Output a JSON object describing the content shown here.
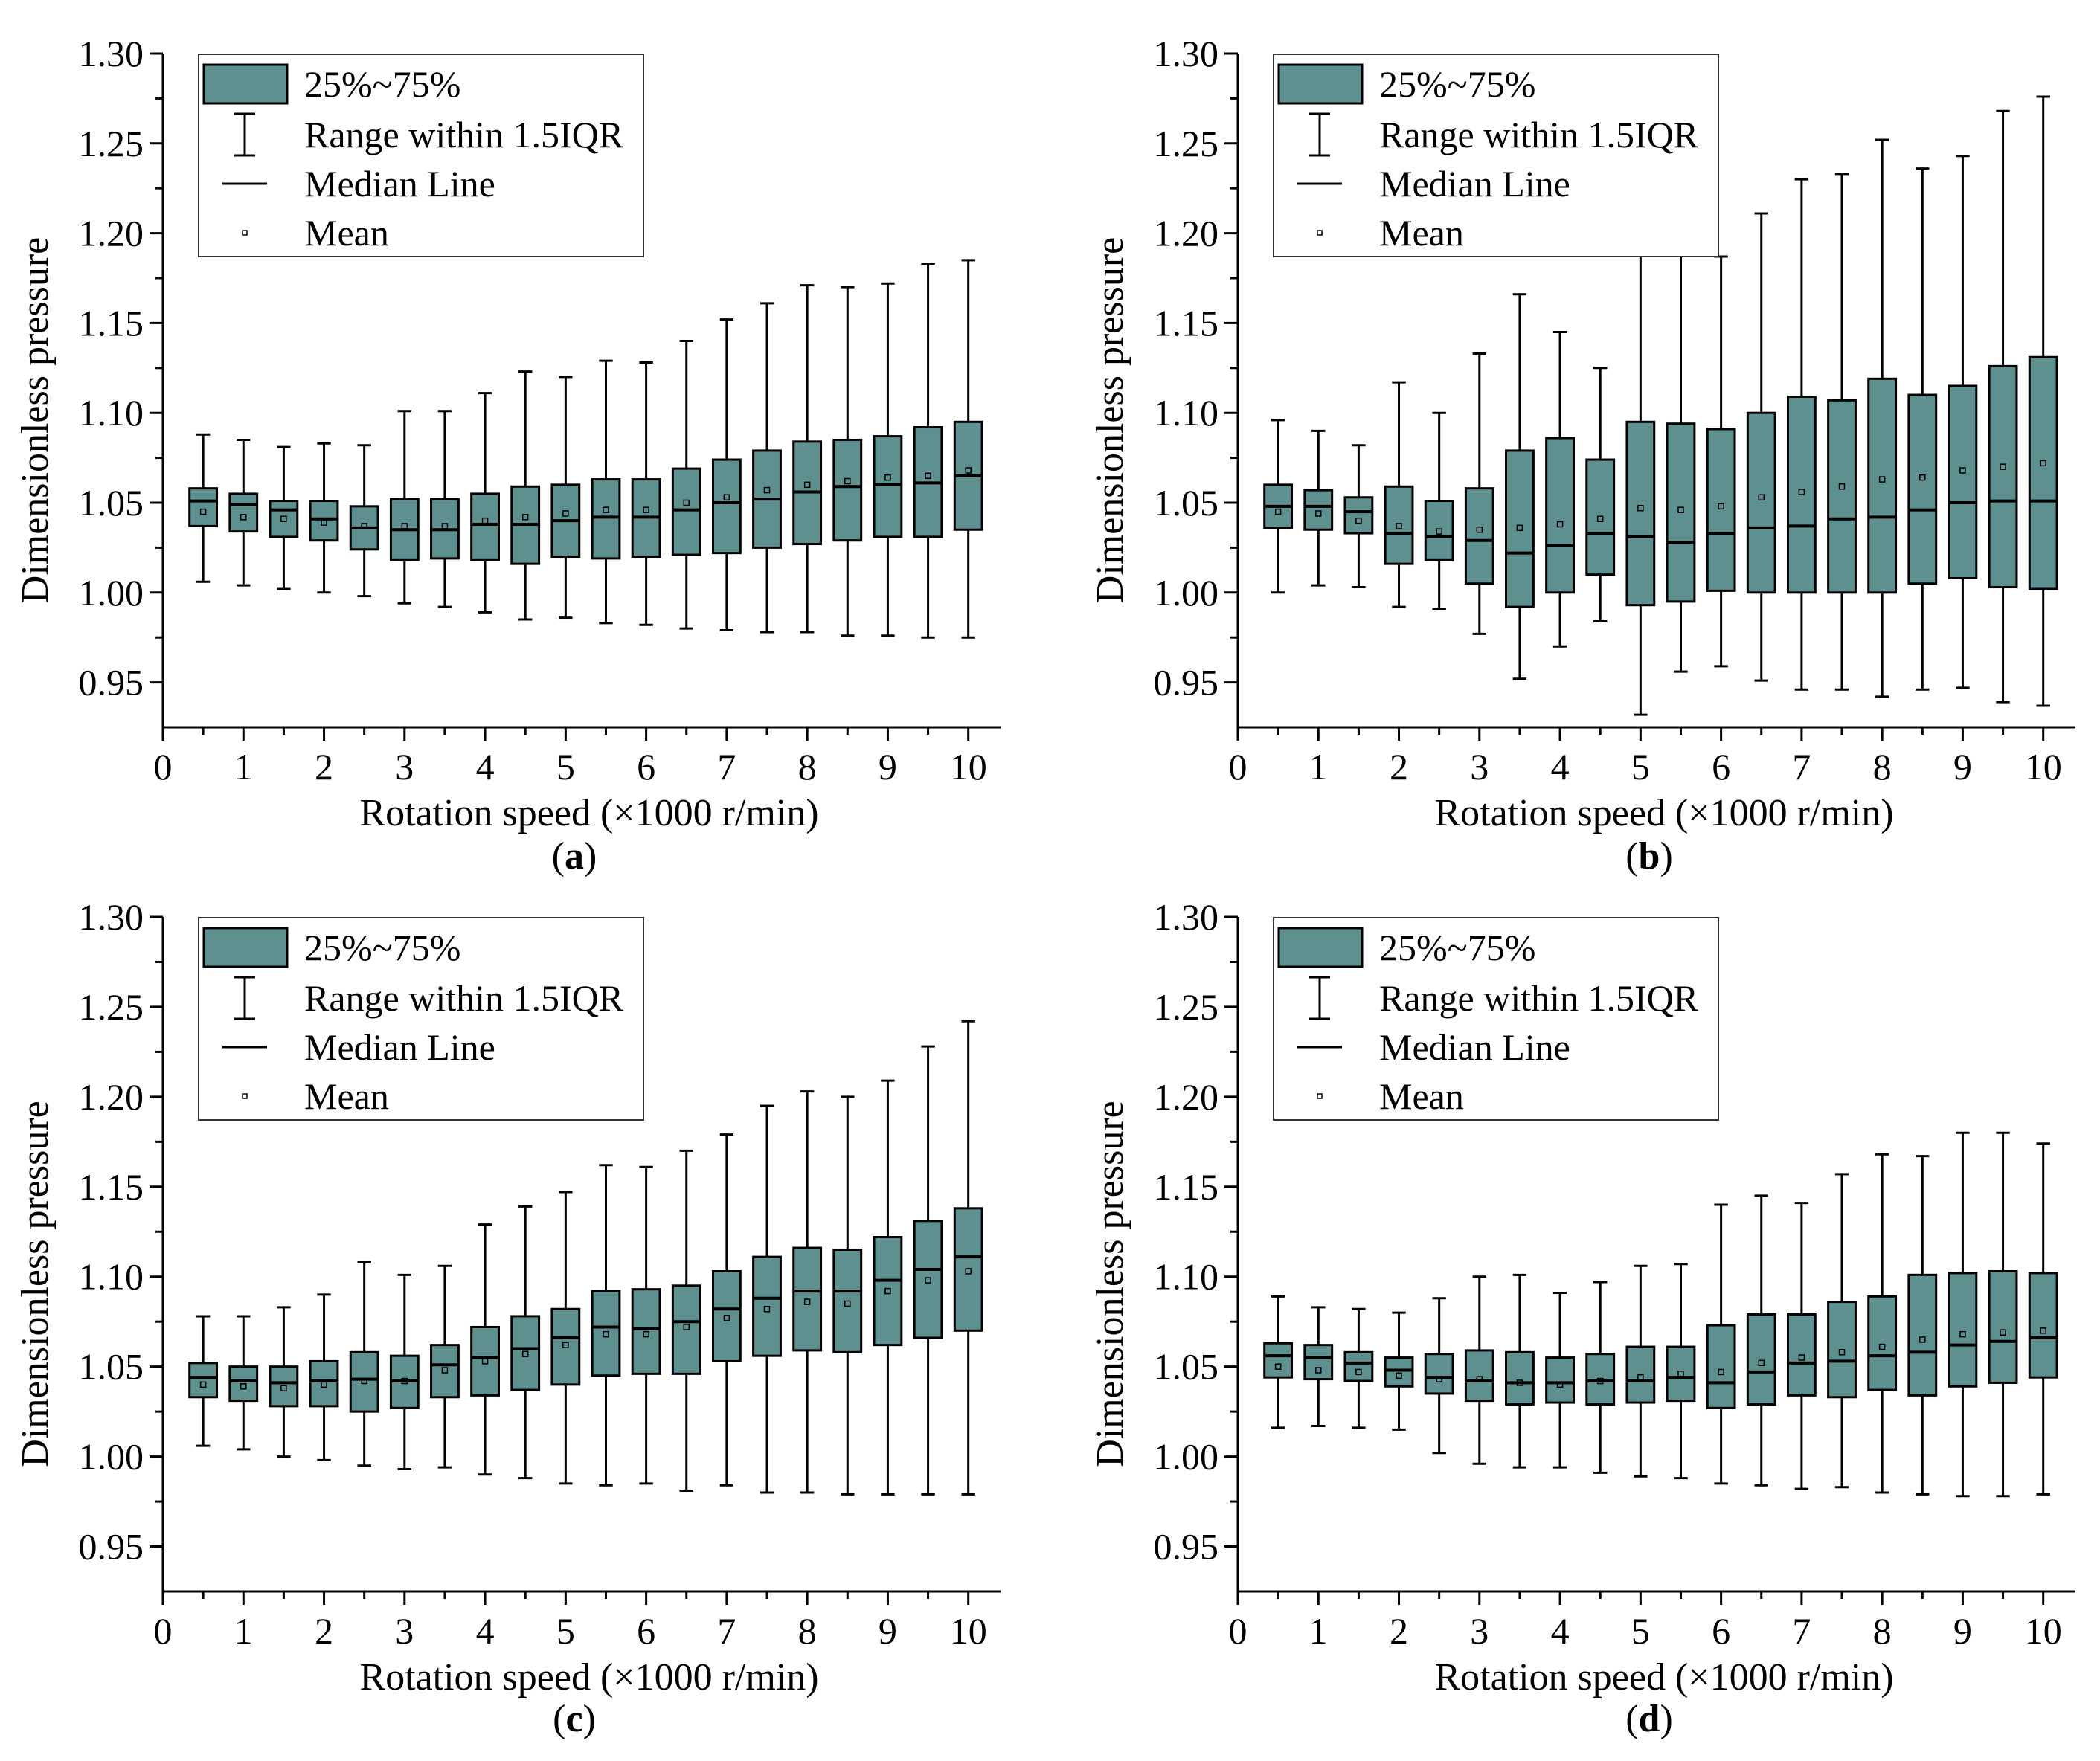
{
  "chart_data": [
    {
      "type": "box",
      "panel": "a",
      "caption_letter": "a",
      "xlabel": "Rotation speed (×1000 r/min)",
      "ylabel": "Dimensionless pressure",
      "xlim": [
        0,
        10.4
      ],
      "ylim": [
        0.925,
        1.3
      ],
      "xticks": [
        "0",
        "1",
        "2",
        "3",
        "4",
        "5",
        "6",
        "7",
        "8",
        "9",
        "10"
      ],
      "yticks": [
        "0.95",
        "1.00",
        "1.05",
        "1.10",
        "1.15",
        "1.20",
        "1.25",
        "1.30"
      ],
      "legend": [
        "25%~75%",
        "Range within 1.5IQR",
        "Median Line",
        "Mean"
      ],
      "x": [
        0.5,
        1,
        1.5,
        2,
        2.5,
        3,
        3.5,
        4,
        4.5,
        5,
        5.5,
        6,
        6.5,
        7,
        7.5,
        8,
        8.5,
        9,
        9.5,
        10
      ],
      "min": [
        1.006,
        1.004,
        1.002,
        1.0,
        0.998,
        0.994,
        0.992,
        0.989,
        0.985,
        0.986,
        0.983,
        0.982,
        0.98,
        0.979,
        0.978,
        0.978,
        0.976,
        0.976,
        0.975,
        0.975
      ],
      "q1": [
        1.037,
        1.034,
        1.031,
        1.029,
        1.024,
        1.018,
        1.019,
        1.018,
        1.016,
        1.02,
        1.019,
        1.02,
        1.021,
        1.022,
        1.025,
        1.027,
        1.029,
        1.031,
        1.031,
        1.035
      ],
      "median": [
        1.051,
        1.049,
        1.046,
        1.041,
        1.036,
        1.035,
        1.035,
        1.038,
        1.038,
        1.04,
        1.042,
        1.042,
        1.046,
        1.05,
        1.052,
        1.056,
        1.059,
        1.06,
        1.061,
        1.065
      ],
      "mean": [
        1.045,
        1.042,
        1.041,
        1.039,
        1.037,
        1.037,
        1.037,
        1.04,
        1.042,
        1.044,
        1.046,
        1.046,
        1.05,
        1.053,
        1.057,
        1.06,
        1.062,
        1.064,
        1.065,
        1.068
      ],
      "q3": [
        1.058,
        1.055,
        1.051,
        1.051,
        1.048,
        1.052,
        1.052,
        1.055,
        1.059,
        1.06,
        1.063,
        1.063,
        1.069,
        1.074,
        1.079,
        1.084,
        1.085,
        1.087,
        1.092,
        1.095
      ],
      "max": [
        1.088,
        1.085,
        1.081,
        1.083,
        1.082,
        1.101,
        1.101,
        1.111,
        1.123,
        1.12,
        1.129,
        1.128,
        1.14,
        1.152,
        1.161,
        1.171,
        1.17,
        1.172,
        1.183,
        1.185
      ]
    },
    {
      "type": "box",
      "panel": "b",
      "caption_letter": "b",
      "xlabel": "Rotation speed (×1000 r/min)",
      "ylabel": "Dimensionless pressure",
      "xlim": [
        0,
        10.4
      ],
      "ylim": [
        0.925,
        1.3
      ],
      "xticks": [
        "0",
        "1",
        "2",
        "3",
        "4",
        "5",
        "6",
        "7",
        "8",
        "9",
        "10"
      ],
      "yticks": [
        "0.95",
        "1.00",
        "1.05",
        "1.10",
        "1.15",
        "1.20",
        "1.25",
        "1.30"
      ],
      "legend": [
        "25%~75%",
        "Range within 1.5IQR",
        "Median Line",
        "Mean"
      ],
      "x": [
        0.5,
        1,
        1.5,
        2,
        2.5,
        3,
        3.5,
        4,
        4.5,
        5,
        5.5,
        6,
        6.5,
        7,
        7.5,
        8,
        8.5,
        9,
        9.5,
        10
      ],
      "min": [
        1.0,
        1.004,
        1.003,
        0.992,
        0.991,
        0.977,
        0.952,
        0.97,
        0.984,
        0.932,
        0.956,
        0.959,
        0.951,
        0.946,
        0.946,
        0.942,
        0.946,
        0.947,
        0.939,
        0.937
      ],
      "q1": [
        1.036,
        1.035,
        1.033,
        1.016,
        1.018,
        1.005,
        0.992,
        1.0,
        1.01,
        0.993,
        0.995,
        1.001,
        1.0,
        1.0,
        1.0,
        1.0,
        1.005,
        1.008,
        1.003,
        1.002
      ],
      "median": [
        1.048,
        1.048,
        1.045,
        1.033,
        1.031,
        1.029,
        1.022,
        1.026,
        1.033,
        1.031,
        1.028,
        1.033,
        1.036,
        1.037,
        1.041,
        1.042,
        1.046,
        1.05,
        1.051,
        1.051
      ],
      "mean": [
        1.045,
        1.044,
        1.04,
        1.037,
        1.034,
        1.035,
        1.036,
        1.038,
        1.041,
        1.047,
        1.046,
        1.048,
        1.053,
        1.056,
        1.059,
        1.063,
        1.064,
        1.068,
        1.07,
        1.072
      ],
      "q3": [
        1.06,
        1.057,
        1.053,
        1.059,
        1.051,
        1.058,
        1.079,
        1.086,
        1.074,
        1.095,
        1.094,
        1.091,
        1.1,
        1.109,
        1.107,
        1.119,
        1.11,
        1.115,
        1.126,
        1.131
      ],
      "max": [
        1.096,
        1.09,
        1.082,
        1.117,
        1.1,
        1.133,
        1.166,
        1.145,
        1.125,
        1.2,
        1.2,
        1.187,
        1.211,
        1.23,
        1.233,
        1.252,
        1.236,
        1.243,
        1.268,
        1.276
      ]
    },
    {
      "type": "box",
      "panel": "c",
      "caption_letter": "c",
      "xlabel": "Rotation speed (×1000 r/min)",
      "ylabel": "Dimensionless pressure",
      "xlim": [
        0,
        10.4
      ],
      "ylim": [
        0.925,
        1.3
      ],
      "xticks": [
        "0",
        "1",
        "2",
        "3",
        "4",
        "5",
        "6",
        "7",
        "8",
        "9",
        "10"
      ],
      "yticks": [
        "0.95",
        "1.00",
        "1.05",
        "1.10",
        "1.15",
        "1.20",
        "1.25",
        "1.30"
      ],
      "legend": [
        "25%~75%",
        "Range within 1.5IQR",
        "Median Line",
        "Mean"
      ],
      "x": [
        0.5,
        1,
        1.5,
        2,
        2.5,
        3,
        3.5,
        4,
        4.5,
        5,
        5.5,
        6,
        6.5,
        7,
        7.5,
        8,
        8.5,
        9,
        9.5,
        10
      ],
      "min": [
        1.006,
        1.004,
        1.0,
        0.998,
        0.995,
        0.993,
        0.994,
        0.99,
        0.988,
        0.985,
        0.984,
        0.985,
        0.981,
        0.984,
        0.98,
        0.98,
        0.979,
        0.979,
        0.979,
        0.979
      ],
      "q1": [
        1.033,
        1.031,
        1.028,
        1.028,
        1.025,
        1.027,
        1.033,
        1.034,
        1.037,
        1.04,
        1.045,
        1.046,
        1.046,
        1.053,
        1.056,
        1.059,
        1.058,
        1.062,
        1.066,
        1.07
      ],
      "median": [
        1.044,
        1.042,
        1.041,
        1.042,
        1.043,
        1.042,
        1.051,
        1.055,
        1.06,
        1.066,
        1.072,
        1.071,
        1.075,
        1.082,
        1.088,
        1.092,
        1.092,
        1.098,
        1.104,
        1.111
      ],
      "mean": [
        1.04,
        1.039,
        1.038,
        1.04,
        1.042,
        1.042,
        1.048,
        1.053,
        1.057,
        1.062,
        1.068,
        1.068,
        1.072,
        1.077,
        1.082,
        1.086,
        1.085,
        1.092,
        1.098,
        1.103
      ],
      "q3": [
        1.052,
        1.05,
        1.05,
        1.053,
        1.058,
        1.056,
        1.062,
        1.072,
        1.078,
        1.082,
        1.092,
        1.093,
        1.095,
        1.103,
        1.111,
        1.116,
        1.115,
        1.122,
        1.131,
        1.138
      ],
      "max": [
        1.078,
        1.078,
        1.083,
        1.09,
        1.108,
        1.101,
        1.106,
        1.129,
        1.139,
        1.147,
        1.162,
        1.161,
        1.17,
        1.179,
        1.195,
        1.203,
        1.2,
        1.209,
        1.228,
        1.242
      ]
    },
    {
      "type": "box",
      "panel": "d",
      "caption_letter": "d",
      "xlabel": "Rotation speed (×1000 r/min)",
      "ylabel": "Dimensionless pressure",
      "xlim": [
        0,
        10.4
      ],
      "ylim": [
        0.925,
        1.3
      ],
      "xticks": [
        "0",
        "1",
        "2",
        "3",
        "4",
        "5",
        "6",
        "7",
        "8",
        "9",
        "10"
      ],
      "yticks": [
        "0.95",
        "1.00",
        "1.05",
        "1.10",
        "1.15",
        "1.20",
        "1.25",
        "1.30"
      ],
      "legend": [
        "25%~75%",
        "Range within 1.5IQR",
        "Median Line",
        "Mean"
      ],
      "x": [
        0.5,
        1,
        1.5,
        2,
        2.5,
        3,
        3.5,
        4,
        4.5,
        5,
        5.5,
        6,
        6.5,
        7,
        7.5,
        8,
        8.5,
        9,
        9.5,
        10
      ],
      "min": [
        1.016,
        1.017,
        1.016,
        1.015,
        1.002,
        0.996,
        0.994,
        0.994,
        0.991,
        0.989,
        0.988,
        0.985,
        0.984,
        0.982,
        0.983,
        0.98,
        0.979,
        0.978,
        0.978,
        0.979
      ],
      "q1": [
        1.044,
        1.043,
        1.042,
        1.039,
        1.035,
        1.031,
        1.029,
        1.03,
        1.029,
        1.03,
        1.031,
        1.027,
        1.029,
        1.034,
        1.033,
        1.037,
        1.034,
        1.039,
        1.041,
        1.044
      ],
      "median": [
        1.056,
        1.055,
        1.052,
        1.048,
        1.044,
        1.042,
        1.041,
        1.041,
        1.042,
        1.042,
        1.044,
        1.041,
        1.047,
        1.052,
        1.053,
        1.056,
        1.058,
        1.062,
        1.064,
        1.066
      ],
      "mean": [
        1.05,
        1.048,
        1.047,
        1.045,
        1.043,
        1.043,
        1.041,
        1.04,
        1.042,
        1.044,
        1.046,
        1.047,
        1.052,
        1.055,
        1.058,
        1.061,
        1.065,
        1.068,
        1.069,
        1.07
      ],
      "q3": [
        1.063,
        1.062,
        1.058,
        1.055,
        1.057,
        1.059,
        1.058,
        1.055,
        1.057,
        1.061,
        1.061,
        1.073,
        1.079,
        1.079,
        1.086,
        1.089,
        1.101,
        1.102,
        1.103,
        1.102
      ],
      "max": [
        1.089,
        1.083,
        1.082,
        1.08,
        1.088,
        1.1,
        1.101,
        1.091,
        1.097,
        1.106,
        1.107,
        1.14,
        1.145,
        1.141,
        1.157,
        1.168,
        1.167,
        1.18,
        1.18,
        1.174
      ]
    }
  ],
  "colors": {
    "box_fill": "#5f9090",
    "stroke": "#000000",
    "background": "#ffffff"
  }
}
